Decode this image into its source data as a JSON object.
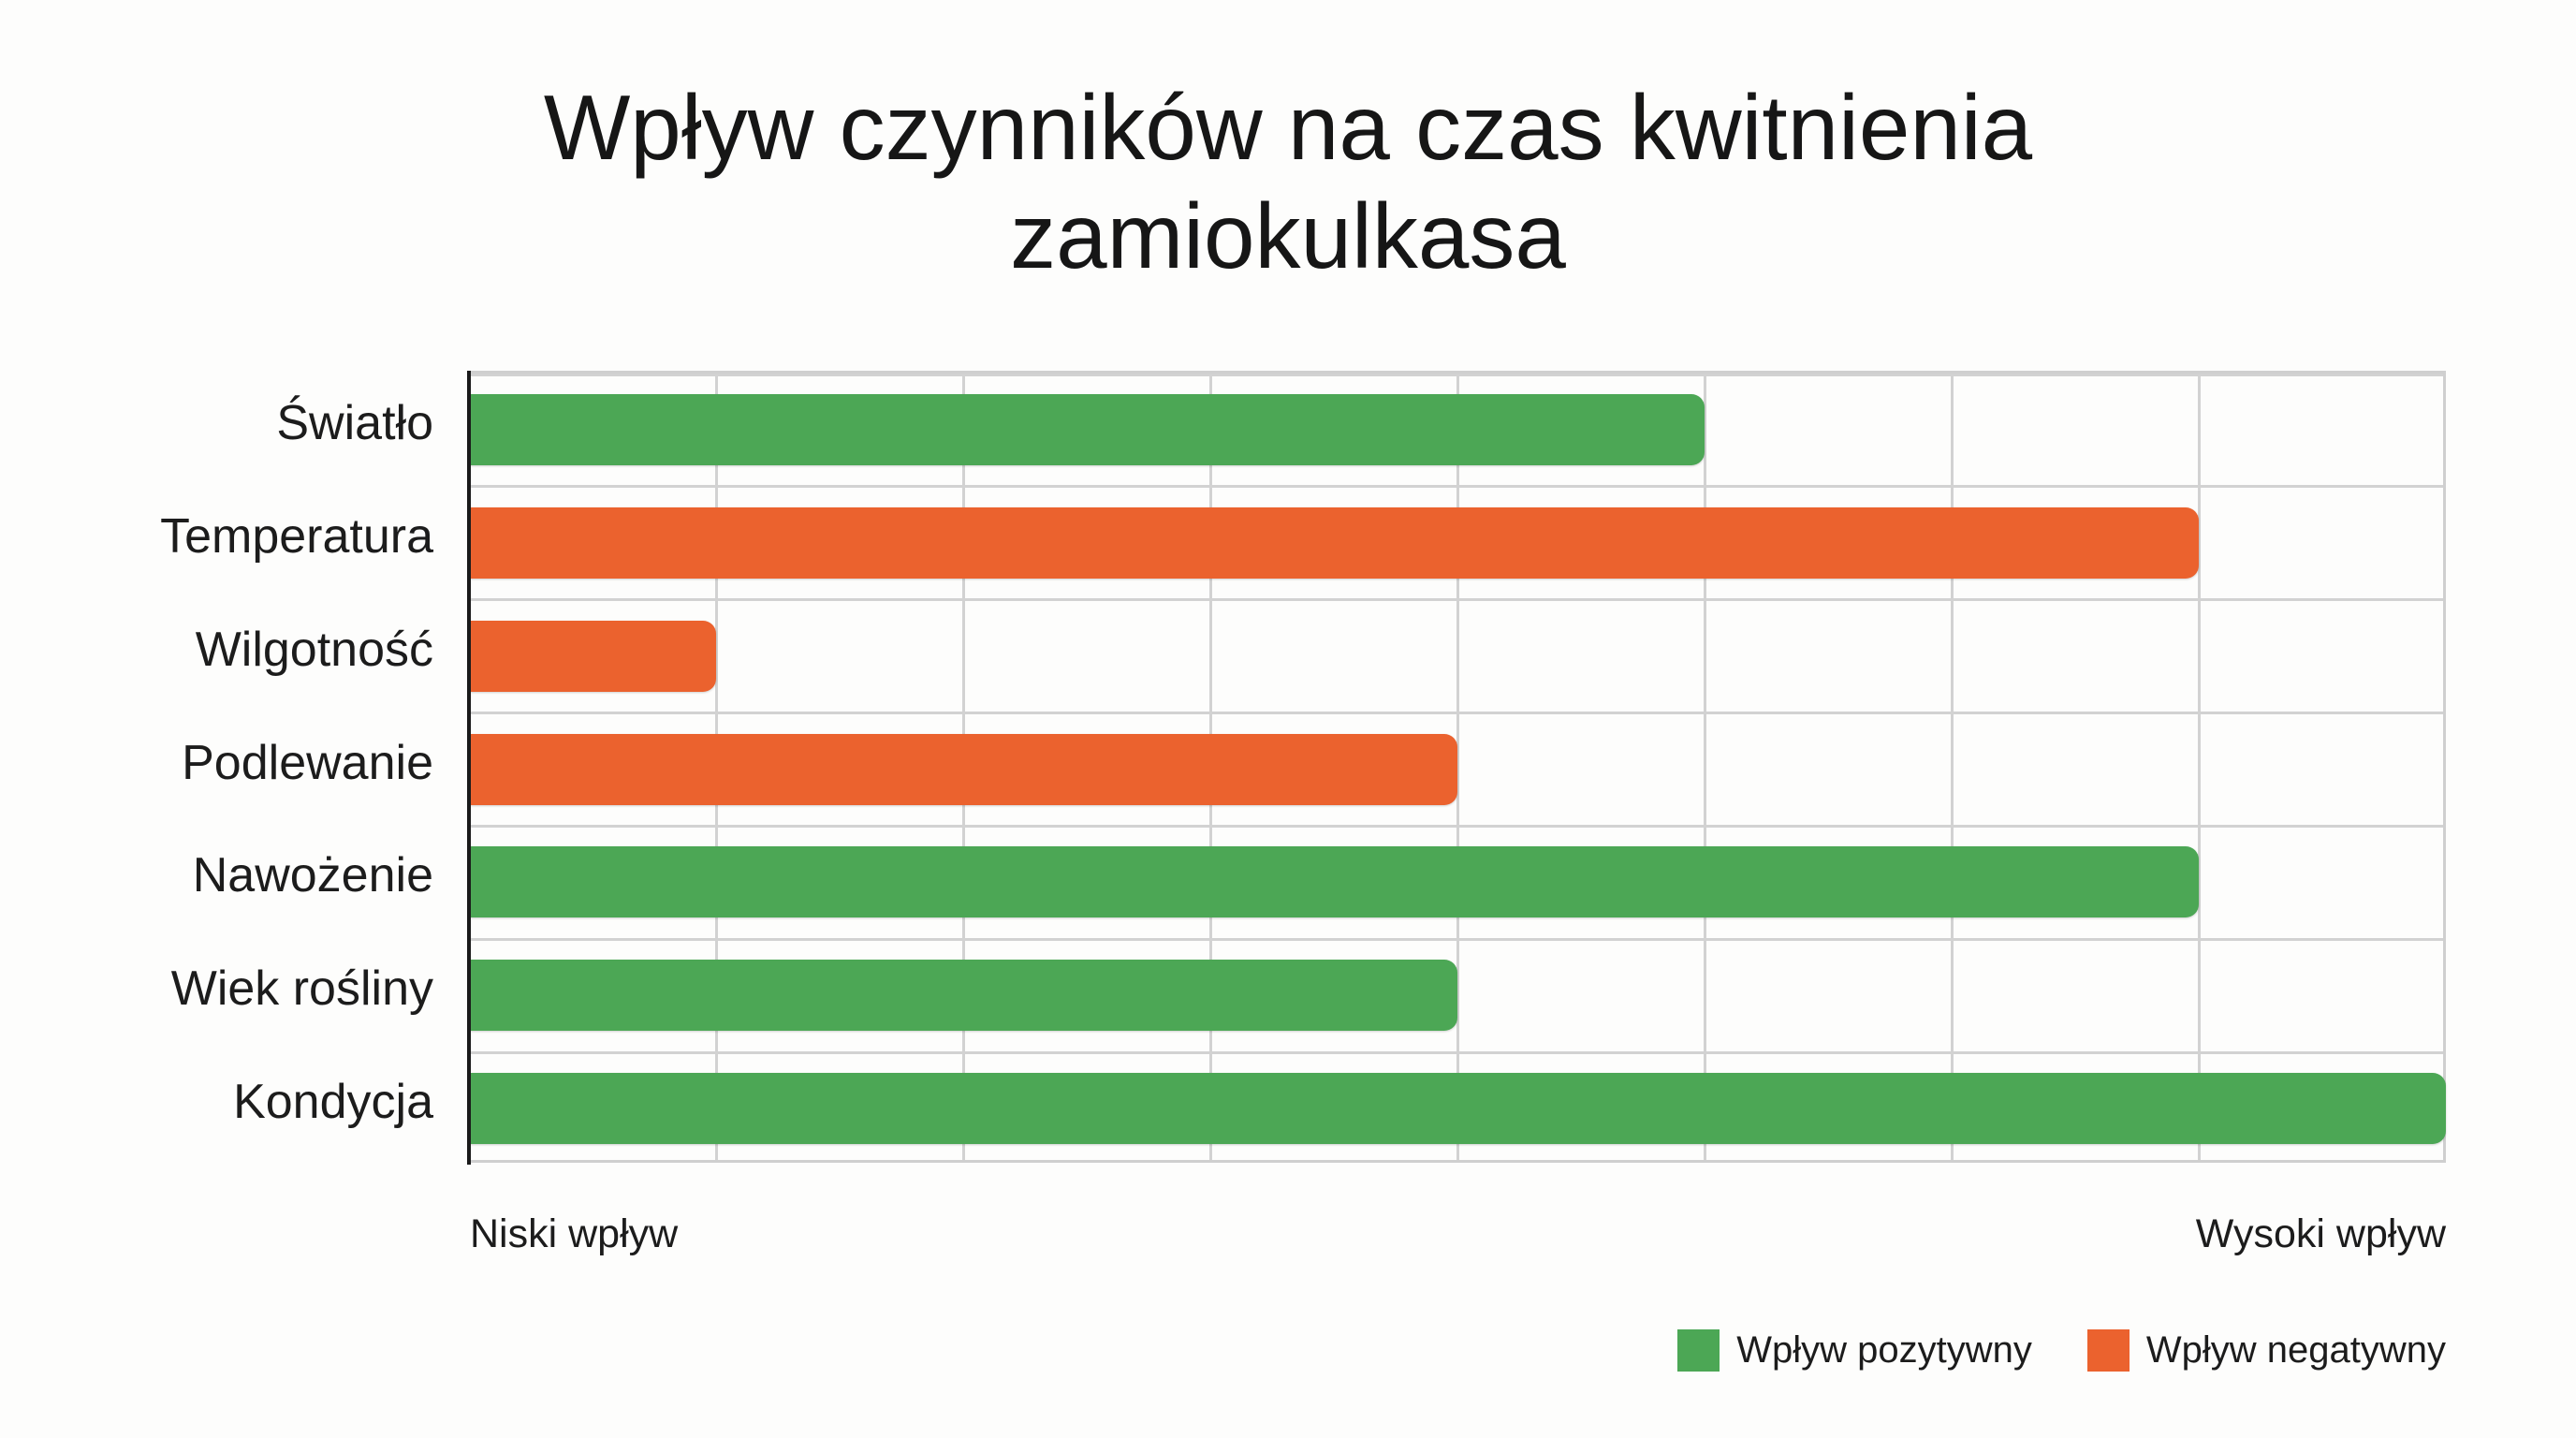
{
  "chart": {
    "title_line1": "Wpływ czynników na czas kwitnienia",
    "title_line2": "zamiokulkasa",
    "x_axis": {
      "low_label": "Niski wpływ",
      "high_label": "Wysoki wpływ"
    },
    "legend": {
      "positive_label": "Wpływ pozytywny",
      "negative_label": "Wpływ negatywny"
    },
    "colors": {
      "positive": "#4ca755",
      "negative": "#eb622e",
      "grid": "#d2d2d2",
      "axis": "#1a1a1a"
    }
  },
  "chart_data": {
    "type": "bar",
    "orientation": "horizontal",
    "title": "Wpływ czynników na czas kwitnienia zamiokulkasa",
    "xlabel": "",
    "ylabel": "",
    "x_tick_labels": {
      "start": "Niski wpływ",
      "end": "Wysoki wpływ"
    },
    "xlim": [
      0,
      8
    ],
    "grid": true,
    "legend_position": "bottom-right",
    "categories": [
      "Światło",
      "Temperatura",
      "Wilgotność",
      "Podlewanie",
      "Nawożenie",
      "Wiek rośliny",
      "Kondycja"
    ],
    "values": [
      5,
      7,
      1,
      4,
      7,
      4,
      8
    ],
    "effect": [
      "positive",
      "negative",
      "negative",
      "negative",
      "positive",
      "positive",
      "positive"
    ],
    "series": [
      {
        "name": "Wpływ pozytywny",
        "color": "#4ca755",
        "values": [
          5,
          0,
          0,
          0,
          7,
          4,
          8
        ]
      },
      {
        "name": "Wpływ negatywny",
        "color": "#eb622e",
        "values": [
          0,
          7,
          1,
          4,
          0,
          0,
          0
        ]
      }
    ]
  }
}
